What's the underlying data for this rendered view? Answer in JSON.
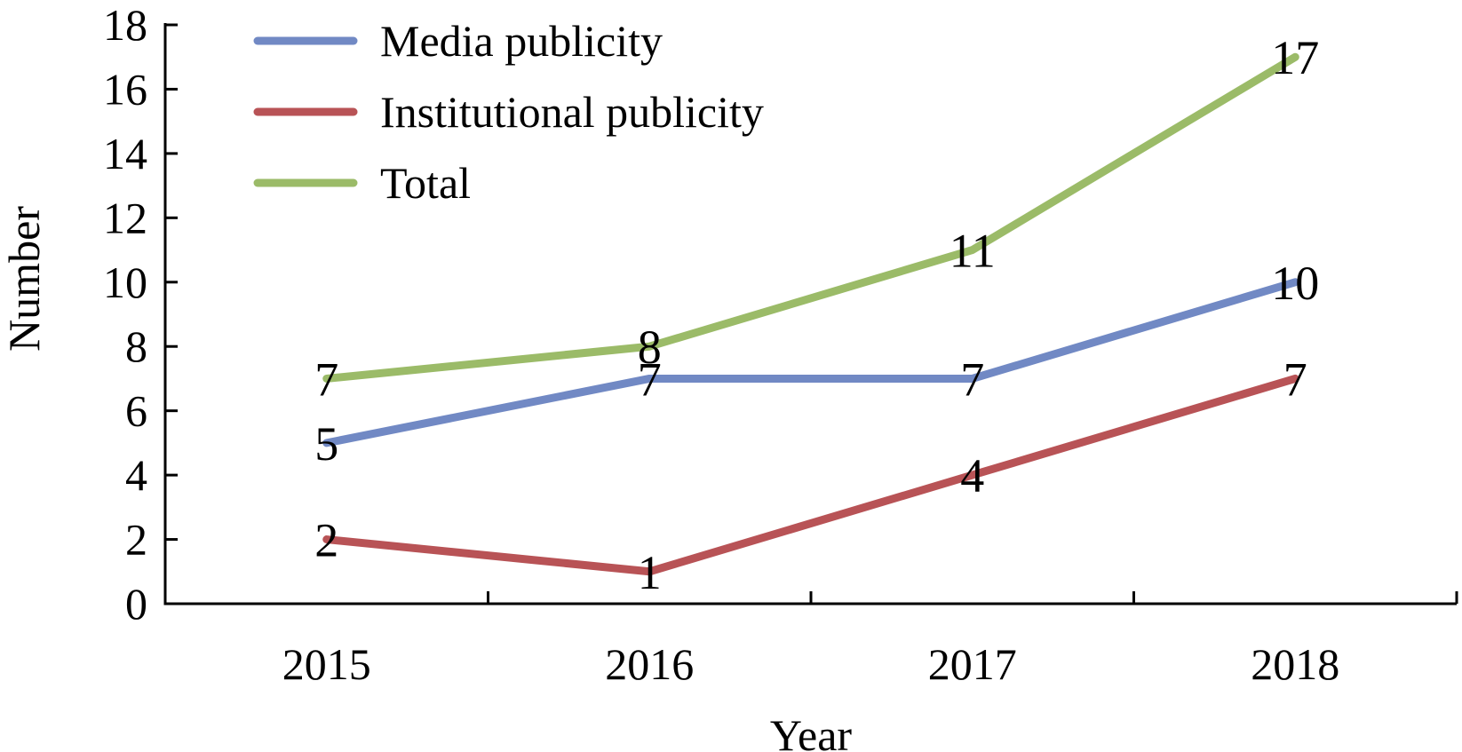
{
  "chart_data": {
    "type": "line",
    "categories": [
      "2015",
      "2016",
      "2017",
      "2018"
    ],
    "series": [
      {
        "name": "Media publicity",
        "values": [
          5,
          7,
          7,
          10
        ],
        "color": "#7189c4"
      },
      {
        "name": "Institutional publicity",
        "values": [
          2,
          1,
          4,
          7
        ],
        "color": "#b85356"
      },
      {
        "name": "Total",
        "values": [
          7,
          8,
          11,
          17
        ],
        "color": "#9bbb68"
      }
    ],
    "title": "",
    "xlabel": "Year",
    "ylabel": "Number",
    "ylim": [
      0,
      18
    ],
    "yticks": [
      "0",
      "2",
      "4",
      "6",
      "8",
      "10",
      "12",
      "14",
      "16",
      "18"
    ],
    "grid": false,
    "legend_position": "top-left",
    "data_labels": true
  }
}
